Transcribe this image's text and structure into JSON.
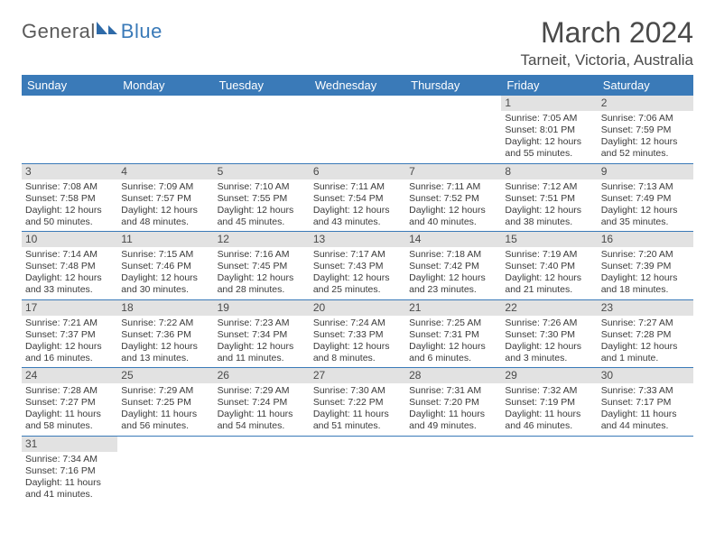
{
  "logo": {
    "word1": "General",
    "word2": "Blue"
  },
  "title": "March 2024",
  "location": "Tarneit, Victoria, Australia",
  "colors": {
    "header_bg": "#3a7ab8",
    "header_fg": "#ffffff",
    "daynum_bg": "#e2e2e2",
    "rule": "#3a7ab8",
    "text": "#3a3a3a"
  },
  "weekdays": [
    "Sunday",
    "Monday",
    "Tuesday",
    "Wednesday",
    "Thursday",
    "Friday",
    "Saturday"
  ],
  "weeks": [
    [
      null,
      null,
      null,
      null,
      null,
      {
        "n": "1",
        "sr": "Sunrise: 7:05 AM",
        "ss": "Sunset: 8:01 PM",
        "dl1": "Daylight: 12 hours",
        "dl2": "and 55 minutes."
      },
      {
        "n": "2",
        "sr": "Sunrise: 7:06 AM",
        "ss": "Sunset: 7:59 PM",
        "dl1": "Daylight: 12 hours",
        "dl2": "and 52 minutes."
      }
    ],
    [
      {
        "n": "3",
        "sr": "Sunrise: 7:08 AM",
        "ss": "Sunset: 7:58 PM",
        "dl1": "Daylight: 12 hours",
        "dl2": "and 50 minutes."
      },
      {
        "n": "4",
        "sr": "Sunrise: 7:09 AM",
        "ss": "Sunset: 7:57 PM",
        "dl1": "Daylight: 12 hours",
        "dl2": "and 48 minutes."
      },
      {
        "n": "5",
        "sr": "Sunrise: 7:10 AM",
        "ss": "Sunset: 7:55 PM",
        "dl1": "Daylight: 12 hours",
        "dl2": "and 45 minutes."
      },
      {
        "n": "6",
        "sr": "Sunrise: 7:11 AM",
        "ss": "Sunset: 7:54 PM",
        "dl1": "Daylight: 12 hours",
        "dl2": "and 43 minutes."
      },
      {
        "n": "7",
        "sr": "Sunrise: 7:11 AM",
        "ss": "Sunset: 7:52 PM",
        "dl1": "Daylight: 12 hours",
        "dl2": "and 40 minutes."
      },
      {
        "n": "8",
        "sr": "Sunrise: 7:12 AM",
        "ss": "Sunset: 7:51 PM",
        "dl1": "Daylight: 12 hours",
        "dl2": "and 38 minutes."
      },
      {
        "n": "9",
        "sr": "Sunrise: 7:13 AM",
        "ss": "Sunset: 7:49 PM",
        "dl1": "Daylight: 12 hours",
        "dl2": "and 35 minutes."
      }
    ],
    [
      {
        "n": "10",
        "sr": "Sunrise: 7:14 AM",
        "ss": "Sunset: 7:48 PM",
        "dl1": "Daylight: 12 hours",
        "dl2": "and 33 minutes."
      },
      {
        "n": "11",
        "sr": "Sunrise: 7:15 AM",
        "ss": "Sunset: 7:46 PM",
        "dl1": "Daylight: 12 hours",
        "dl2": "and 30 minutes."
      },
      {
        "n": "12",
        "sr": "Sunrise: 7:16 AM",
        "ss": "Sunset: 7:45 PM",
        "dl1": "Daylight: 12 hours",
        "dl2": "and 28 minutes."
      },
      {
        "n": "13",
        "sr": "Sunrise: 7:17 AM",
        "ss": "Sunset: 7:43 PM",
        "dl1": "Daylight: 12 hours",
        "dl2": "and 25 minutes."
      },
      {
        "n": "14",
        "sr": "Sunrise: 7:18 AM",
        "ss": "Sunset: 7:42 PM",
        "dl1": "Daylight: 12 hours",
        "dl2": "and 23 minutes."
      },
      {
        "n": "15",
        "sr": "Sunrise: 7:19 AM",
        "ss": "Sunset: 7:40 PM",
        "dl1": "Daylight: 12 hours",
        "dl2": "and 21 minutes."
      },
      {
        "n": "16",
        "sr": "Sunrise: 7:20 AM",
        "ss": "Sunset: 7:39 PM",
        "dl1": "Daylight: 12 hours",
        "dl2": "and 18 minutes."
      }
    ],
    [
      {
        "n": "17",
        "sr": "Sunrise: 7:21 AM",
        "ss": "Sunset: 7:37 PM",
        "dl1": "Daylight: 12 hours",
        "dl2": "and 16 minutes."
      },
      {
        "n": "18",
        "sr": "Sunrise: 7:22 AM",
        "ss": "Sunset: 7:36 PM",
        "dl1": "Daylight: 12 hours",
        "dl2": "and 13 minutes."
      },
      {
        "n": "19",
        "sr": "Sunrise: 7:23 AM",
        "ss": "Sunset: 7:34 PM",
        "dl1": "Daylight: 12 hours",
        "dl2": "and 11 minutes."
      },
      {
        "n": "20",
        "sr": "Sunrise: 7:24 AM",
        "ss": "Sunset: 7:33 PM",
        "dl1": "Daylight: 12 hours",
        "dl2": "and 8 minutes."
      },
      {
        "n": "21",
        "sr": "Sunrise: 7:25 AM",
        "ss": "Sunset: 7:31 PM",
        "dl1": "Daylight: 12 hours",
        "dl2": "and 6 minutes."
      },
      {
        "n": "22",
        "sr": "Sunrise: 7:26 AM",
        "ss": "Sunset: 7:30 PM",
        "dl1": "Daylight: 12 hours",
        "dl2": "and 3 minutes."
      },
      {
        "n": "23",
        "sr": "Sunrise: 7:27 AM",
        "ss": "Sunset: 7:28 PM",
        "dl1": "Daylight: 12 hours",
        "dl2": "and 1 minute."
      }
    ],
    [
      {
        "n": "24",
        "sr": "Sunrise: 7:28 AM",
        "ss": "Sunset: 7:27 PM",
        "dl1": "Daylight: 11 hours",
        "dl2": "and 58 minutes."
      },
      {
        "n": "25",
        "sr": "Sunrise: 7:29 AM",
        "ss": "Sunset: 7:25 PM",
        "dl1": "Daylight: 11 hours",
        "dl2": "and 56 minutes."
      },
      {
        "n": "26",
        "sr": "Sunrise: 7:29 AM",
        "ss": "Sunset: 7:24 PM",
        "dl1": "Daylight: 11 hours",
        "dl2": "and 54 minutes."
      },
      {
        "n": "27",
        "sr": "Sunrise: 7:30 AM",
        "ss": "Sunset: 7:22 PM",
        "dl1": "Daylight: 11 hours",
        "dl2": "and 51 minutes."
      },
      {
        "n": "28",
        "sr": "Sunrise: 7:31 AM",
        "ss": "Sunset: 7:20 PM",
        "dl1": "Daylight: 11 hours",
        "dl2": "and 49 minutes."
      },
      {
        "n": "29",
        "sr": "Sunrise: 7:32 AM",
        "ss": "Sunset: 7:19 PM",
        "dl1": "Daylight: 11 hours",
        "dl2": "and 46 minutes."
      },
      {
        "n": "30",
        "sr": "Sunrise: 7:33 AM",
        "ss": "Sunset: 7:17 PM",
        "dl1": "Daylight: 11 hours",
        "dl2": "and 44 minutes."
      }
    ],
    [
      {
        "n": "31",
        "sr": "Sunrise: 7:34 AM",
        "ss": "Sunset: 7:16 PM",
        "dl1": "Daylight: 11 hours",
        "dl2": "and 41 minutes."
      },
      null,
      null,
      null,
      null,
      null,
      null
    ]
  ]
}
